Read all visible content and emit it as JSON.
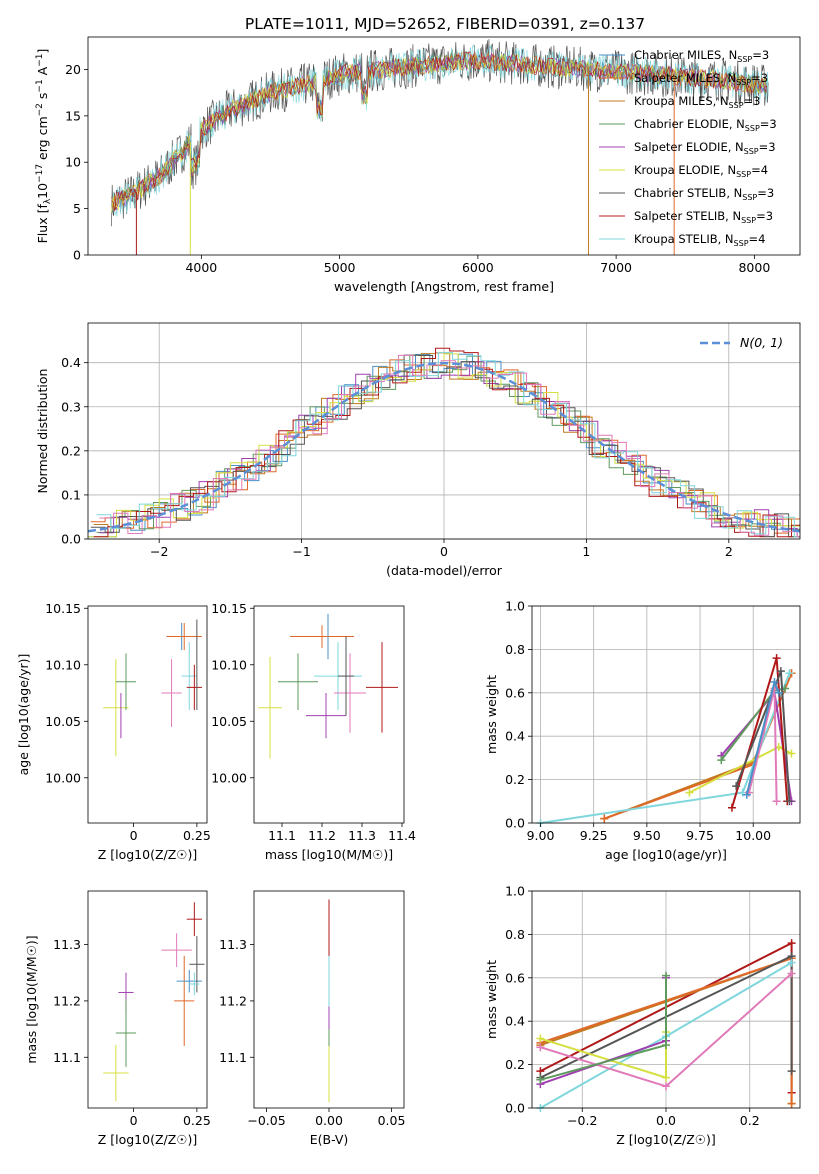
{
  "title": "PLATE=1011, MJD=52652, FIBERID=0391, z=0.137",
  "colors": {
    "chabrier_miles": "#4a90c8",
    "salpeter_miles": "#e0692a",
    "kroupa_miles": "#c07a20",
    "chabrier_elodie": "#5e9a5e",
    "salpeter_elodie": "#a040b0",
    "kroupa_elodie": "#d4e040",
    "chabrier_stelib": "#555555",
    "salpeter_stelib": "#b01818",
    "kroupa_stelib": "#7fd6dc",
    "pink": "#e07ab8",
    "gaussian": "#5b8fd8"
  },
  "chart_data": [
    {
      "id": "spectrum",
      "type": "line",
      "xlabel": "wavelength [Angstrom, rest frame]",
      "ylabel": "Flux [f_λ 10^-17 erg cm^-2 s^-1 A^-1]",
      "ylabel_parts": {
        "a": "Flux [f",
        "b": "λ",
        "c": "10",
        "d": "−17",
        "e": " erg cm",
        "f": "−2",
        "g": " s",
        "h": "−1",
        "i": " A",
        "j": "−1",
        "k": "]"
      },
      "xlim": [
        3180,
        8330
      ],
      "ylim": [
        0,
        23.5
      ],
      "xticks": [
        4000,
        5000,
        6000,
        7000,
        8000
      ],
      "yticks": [
        0,
        5,
        10,
        15,
        20
      ],
      "series_envelope": {
        "x": [
          3350,
          3500,
          3700,
          3850,
          4000,
          4200,
          4500,
          4800,
          5000,
          5200,
          5500,
          5800,
          6000,
          6300,
          6600,
          7000,
          7400,
          7800,
          8100
        ],
        "y": [
          5.5,
          6.5,
          8.5,
          11,
          13.5,
          15.5,
          17.5,
          18.5,
          19.5,
          19.8,
          20.3,
          20.8,
          21.0,
          20.6,
          20.2,
          19.8,
          19.3,
          18.8,
          18.2
        ]
      },
      "spikes": [
        {
          "x": 3530,
          "color": "salpeter_stelib"
        },
        {
          "x": 3920,
          "color": "kroupa_elodie"
        },
        {
          "x": 6800,
          "color": "kroupa_miles"
        },
        {
          "x": 7420,
          "color": "salpeter_miles"
        }
      ],
      "legend": [
        {
          "label": "Chabrier MILES, N",
          "sub": "SSP",
          "eq": "=3",
          "color": "chabrier_miles"
        },
        {
          "label": "Salpeter MILES, N",
          "sub": "SSP",
          "eq": "=3",
          "color": "salpeter_miles"
        },
        {
          "label": "Kroupa MILES, N",
          "sub": "SSP",
          "eq": "=3",
          "color": "kroupa_miles"
        },
        {
          "label": "Chabrier ELODIE, N",
          "sub": "SSP",
          "eq": "=3",
          "color": "chabrier_elodie"
        },
        {
          "label": "Salpeter ELODIE, N",
          "sub": "SSP",
          "eq": "=3",
          "color": "salpeter_elodie"
        },
        {
          "label": "Kroupa ELODIE, N",
          "sub": "SSP",
          "eq": "=4",
          "color": "kroupa_elodie"
        },
        {
          "label": "Chabrier STELIB, N",
          "sub": "SSP",
          "eq": "=3",
          "color": "chabrier_stelib"
        },
        {
          "label": "Salpeter STELIB, N",
          "sub": "SSP",
          "eq": "=3",
          "color": "salpeter_stelib"
        },
        {
          "label": "Kroupa STELIB, N",
          "sub": "SSP",
          "eq": "=4",
          "color": "kroupa_stelib"
        }
      ]
    },
    {
      "id": "residuals",
      "type": "histogram",
      "xlabel": "(data-model)/error",
      "ylabel": "Normed distribution",
      "xlim": [
        -2.5,
        2.5
      ],
      "ylim": [
        0,
        0.49
      ],
      "xticks": [
        -2,
        -1,
        0,
        1,
        2
      ],
      "yticks": [
        0.0,
        0.1,
        0.2,
        0.3,
        0.4
      ],
      "grid": true,
      "legend": [
        {
          "label": "N(0, 1)",
          "color": "gaussian",
          "style": "dashed"
        }
      ],
      "gaussian": {
        "mean": 0,
        "sigma": 1
      }
    },
    {
      "id": "age_vs_Z",
      "type": "scatter-errorbar",
      "xlabel": "Z [log10(Z/Z☉)]",
      "ylabel": "age [log10(age/yr)]",
      "xlim": [
        -0.18,
        0.29
      ],
      "ylim": [
        9.96,
        10.152
      ],
      "xticks": [
        0.0,
        0.25
      ],
      "yticks": [
        10.0,
        10.05,
        10.1,
        10.15
      ],
      "points": [
        {
          "x": -0.07,
          "y": 10.062,
          "xerr": 0.05,
          "yerr": 0.043,
          "color": "kroupa_elodie"
        },
        {
          "x": -0.05,
          "y": 10.055,
          "xerr": 0.0,
          "yerr": 0.02,
          "color": "salpeter_elodie"
        },
        {
          "x": -0.03,
          "y": 10.085,
          "xerr": 0.04,
          "yerr": 0.025,
          "color": "chabrier_elodie"
        },
        {
          "x": 0.15,
          "y": 10.075,
          "xerr": 0.04,
          "yerr": 0.03,
          "color": "pink"
        },
        {
          "x": 0.19,
          "y": 10.125,
          "xerr": 0.06,
          "yerr": 0.012,
          "color": "chabrier_miles"
        },
        {
          "x": 0.2,
          "y": 10.125,
          "xerr": 0.07,
          "yerr": 0.012,
          "color": "salpeter_miles"
        },
        {
          "x": 0.22,
          "y": 10.09,
          "xerr": 0.03,
          "yerr": 0.03,
          "color": "kroupa_stelib"
        },
        {
          "x": 0.24,
          "y": 10.08,
          "xerr": 0.03,
          "yerr": 0.02,
          "color": "salpeter_stelib"
        },
        {
          "x": 0.25,
          "y": 10.1,
          "xerr": 0.0,
          "yerr": 0.04,
          "color": "chabrier_stelib"
        }
      ]
    },
    {
      "id": "age_vs_mass",
      "type": "scatter-errorbar",
      "xlabel": "mass [log10(M/M☉)]",
      "ylabel": "",
      "xlim": [
        11.03,
        11.405
      ],
      "ylim": [
        9.96,
        10.152
      ],
      "xticks": [
        11.1,
        11.2,
        11.3,
        11.4
      ],
      "xticklabels": [
        "11.1",
        "11.2",
        "11.3",
        "11.4"
      ],
      "yticks": [
        10.0,
        10.05,
        10.1,
        10.15
      ],
      "points": [
        {
          "x": 11.07,
          "y": 10.062,
          "xerr": 0.03,
          "yerr": 0.045,
          "color": "kroupa_elodie"
        },
        {
          "x": 11.14,
          "y": 10.085,
          "xerr": 0.05,
          "yerr": 0.025,
          "color": "chabrier_elodie"
        },
        {
          "x": 11.21,
          "y": 10.055,
          "xerr": 0.05,
          "yerr": 0.02,
          "color": "salpeter_elodie"
        },
        {
          "x": 11.215,
          "y": 10.125,
          "xerr": 0.06,
          "yerr": 0.02,
          "color": "chabrier_miles"
        },
        {
          "x": 11.2,
          "y": 10.125,
          "xerr": 0.08,
          "yerr": 0.01,
          "color": "salpeter_miles"
        },
        {
          "x": 11.24,
          "y": 10.09,
          "xerr": 0.06,
          "yerr": 0.03,
          "color": "kroupa_stelib"
        },
        {
          "x": 11.27,
          "y": 10.075,
          "xerr": 0.04,
          "yerr": 0.035,
          "color": "pink"
        },
        {
          "x": 11.35,
          "y": 10.08,
          "xerr": 0.04,
          "yerr": 0.04,
          "color": "salpeter_stelib"
        },
        {
          "x": 11.26,
          "y": 10.09,
          "xerr": 0.02,
          "yerr": 0.035,
          "color": "chabrier_stelib"
        }
      ]
    },
    {
      "id": "massweight_vs_age",
      "type": "line",
      "xlabel": "age [log10(age/yr)]",
      "ylabel": "mass weight",
      "xlim": [
        8.96,
        10.22
      ],
      "ylim": [
        0,
        1.0
      ],
      "xticks": [
        9.0,
        9.25,
        9.5,
        9.75,
        10.0
      ],
      "xticklabels": [
        "9.00",
        "9.25",
        "9.50",
        "9.75",
        "10.00"
      ],
      "yticks": [
        0.0,
        0.2,
        0.4,
        0.6,
        0.8,
        1.0
      ],
      "series": [
        {
          "color": "kroupa_miles",
          "x": [
            9.3,
            10.0,
            10.18
          ],
          "y": [
            0.02,
            0.28,
            0.69
          ]
        },
        {
          "color": "salpeter_miles",
          "x": [
            9.3,
            10.0,
            10.18
          ],
          "y": [
            0.02,
            0.27,
            0.69
          ]
        },
        {
          "color": "kroupa_stelib",
          "x": [
            9.0,
            9.95,
            10.17
          ],
          "y": [
            0.0,
            0.14,
            0.69
          ]
        },
        {
          "color": "kroupa_elodie",
          "x": [
            9.7,
            10.12,
            10.18
          ],
          "y": [
            0.14,
            0.35,
            0.32
          ]
        },
        {
          "color": "salpeter_elodie",
          "x": [
            9.85,
            10.1,
            10.18
          ],
          "y": [
            0.31,
            0.6,
            0.1
          ]
        },
        {
          "color": "chabrier_elodie",
          "x": [
            9.85,
            10.1,
            10.15
          ],
          "y": [
            0.29,
            0.61,
            0.62
          ]
        },
        {
          "color": "salpeter_stelib",
          "x": [
            9.9,
            10.11,
            10.16
          ],
          "y": [
            0.07,
            0.76,
            0.1
          ]
        },
        {
          "color": "chabrier_stelib",
          "x": [
            9.92,
            10.13,
            10.17
          ],
          "y": [
            0.17,
            0.7,
            0.1
          ]
        },
        {
          "color": "pink",
          "x": [
            9.98,
            10.1,
            10.11
          ],
          "y": [
            0.14,
            0.62,
            0.1
          ]
        },
        {
          "color": "chabrier_miles",
          "x": [
            9.97,
            10.1,
            10.12
          ],
          "y": [
            0.13,
            0.65,
            0.6
          ]
        }
      ]
    },
    {
      "id": "mass_vs_Z",
      "type": "scatter-errorbar",
      "xlabel": "Z [log10(Z/Z☉)]",
      "ylabel": "mass [log10(M/M☉)]",
      "xlim": [
        -0.18,
        0.29
      ],
      "ylim": [
        11.01,
        11.395
      ],
      "xticks": [
        0.0,
        0.25
      ],
      "yticks": [
        11.1,
        11.2,
        11.3
      ],
      "points": [
        {
          "x": -0.07,
          "y": 11.072,
          "xerr": 0.05,
          "yerr": 0.05,
          "color": "kroupa_elodie"
        },
        {
          "x": -0.03,
          "y": 11.215,
          "xerr": 0.03,
          "yerr": 0.035,
          "color": "salpeter_elodie"
        },
        {
          "x": -0.03,
          "y": 11.143,
          "xerr": 0.04,
          "yerr": 0.06,
          "color": "chabrier_elodie"
        },
        {
          "x": 0.17,
          "y": 11.29,
          "xerr": 0.06,
          "yerr": 0.03,
          "color": "pink"
        },
        {
          "x": 0.2,
          "y": 11.2,
          "xerr": 0.04,
          "yerr": 0.08,
          "color": "salpeter_miles"
        },
        {
          "x": 0.22,
          "y": 11.235,
          "xerr": 0.05,
          "yerr": 0.02,
          "color": "chabrier_miles"
        },
        {
          "x": 0.24,
          "y": 11.345,
          "xerr": 0.03,
          "yerr": 0.03,
          "color": "salpeter_stelib"
        },
        {
          "x": 0.25,
          "y": 11.265,
          "xerr": 0.03,
          "yerr": 0.05,
          "color": "chabrier_stelib"
        },
        {
          "x": 0.24,
          "y": 11.23,
          "xerr": 0.02,
          "yerr": 0.02,
          "color": "kroupa_stelib"
        }
      ]
    },
    {
      "id": "mass_vs_EBV",
      "type": "scatter-errorbar",
      "xlabel": "E(B-V)",
      "ylabel": "",
      "xlim": [
        -0.06,
        0.06
      ],
      "ylim": [
        11.01,
        11.395
      ],
      "xticks": [
        -0.05,
        0.0,
        0.05
      ],
      "xticklabels": [
        "−0.05",
        "0.00",
        "0.05"
      ],
      "yticks": [
        11.1,
        11.2,
        11.3
      ],
      "points": [
        {
          "x": 0,
          "y": 11.07,
          "xerr": 0,
          "yerr": 0.05,
          "color": "kroupa_elodie"
        },
        {
          "x": 0,
          "y": 11.2,
          "xerr": 0,
          "yerr": 0.08,
          "color": "chabrier_elodie"
        },
        {
          "x": 0,
          "y": 11.21,
          "xerr": 0,
          "yerr": 0.06,
          "color": "salpeter_elodie"
        },
        {
          "x": 0,
          "y": 11.24,
          "xerr": 0,
          "yerr": 0.05,
          "color": "kroupa_stelib"
        },
        {
          "x": 0,
          "y": 11.33,
          "xerr": 0,
          "yerr": 0.05,
          "color": "salpeter_stelib"
        }
      ]
    },
    {
      "id": "massweight_vs_Z",
      "type": "line",
      "xlabel": "Z [log10(Z/Z☉)]",
      "ylabel": "mass weight",
      "xlim": [
        -0.32,
        0.32
      ],
      "ylim": [
        0,
        1.0
      ],
      "xticks": [
        -0.2,
        0.0,
        0.2
      ],
      "xticklabels": [
        "−0.2",
        "0.0",
        "0.2"
      ],
      "yticks": [
        0.0,
        0.2,
        0.4,
        0.6,
        0.8,
        1.0
      ],
      "series": [
        {
          "color": "salpeter_stelib",
          "x": [
            -0.3,
            0.3,
            0.3
          ],
          "y": [
            0.17,
            0.76,
            0.07
          ]
        },
        {
          "color": "kroupa_miles",
          "x": [
            -0.3,
            0.3,
            0.3
          ],
          "y": [
            0.29,
            0.69,
            0.02
          ]
        },
        {
          "color": "salpeter_miles",
          "x": [
            -0.3,
            0.3,
            0.3
          ],
          "y": [
            0.3,
            0.69,
            0.02
          ]
        },
        {
          "color": "chabrier_stelib",
          "x": [
            -0.3,
            0.3,
            0.3
          ],
          "y": [
            0.14,
            0.7,
            0.17
          ]
        },
        {
          "color": "kroupa_stelib",
          "x": [
            -0.3,
            0.0,
            0.3
          ],
          "y": [
            0.0,
            0.33,
            0.67
          ]
        },
        {
          "color": "pink",
          "x": [
            -0.3,
            0.0,
            0.3
          ],
          "y": [
            0.28,
            0.1,
            0.62
          ]
        },
        {
          "color": "kroupa_elodie",
          "x": [
            -0.3,
            0.0,
            0.0
          ],
          "y": [
            0.32,
            0.14,
            0.35
          ]
        },
        {
          "color": "salpeter_elodie",
          "x": [
            -0.3,
            0.0,
            0.0
          ],
          "y": [
            0.11,
            0.31,
            0.6
          ]
        },
        {
          "color": "chabrier_elodie",
          "x": [
            -0.3,
            0.0,
            0.0
          ],
          "y": [
            0.13,
            0.29,
            0.61
          ]
        }
      ]
    }
  ]
}
